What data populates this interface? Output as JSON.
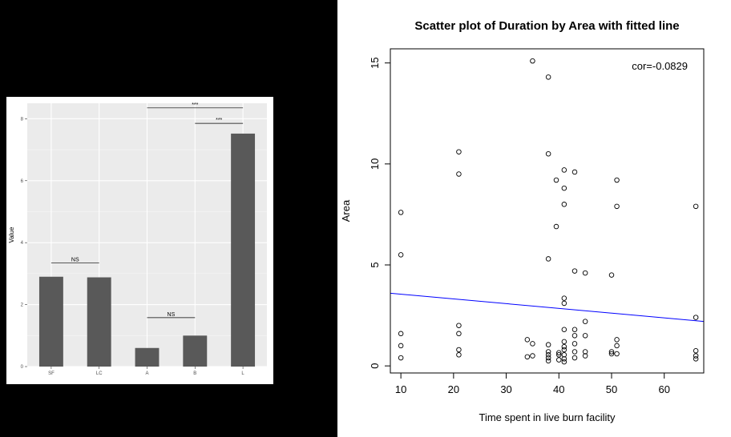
{
  "chart_data": [
    {
      "type": "bar",
      "categories": [
        "SF",
        "LC",
        "A",
        "B",
        "L"
      ],
      "values": [
        2.9,
        2.88,
        0.6,
        1.0,
        7.52
      ],
      "ylabel": "Value",
      "xlabel": "",
      "ylim": [
        0,
        8.5
      ],
      "yticks": [
        0,
        2,
        4,
        6,
        8
      ],
      "grid": true,
      "bar_color": "#595959",
      "panel_color": "#ebebeb",
      "annotations": [
        {
          "from": "SF",
          "to": "LC",
          "y": 3.35,
          "text": "NS"
        },
        {
          "from": "A",
          "to": "B",
          "y": 1.58,
          "text": "NS"
        },
        {
          "from": "A",
          "to": "L",
          "y": 8.35,
          "text": "***"
        },
        {
          "from": "B",
          "to": "L",
          "y": 7.85,
          "text": "***"
        }
      ]
    },
    {
      "type": "scatter",
      "title": "Scatter plot of Duration by Area with fitted line",
      "xlabel": "Time spent in live burn facility",
      "ylabel": "Area",
      "xlim": [
        8,
        67.5
      ],
      "ylim": [
        -0.35,
        15.7
      ],
      "xticks": [
        10,
        20,
        30,
        40,
        50,
        60
      ],
      "yticks": [
        0,
        5,
        10,
        15
      ],
      "annotation": "cor=-0.0829",
      "fit_line": {
        "color": "#0000ff",
        "x": [
          8,
          67.5
        ],
        "y": [
          3.6,
          2.2
        ]
      },
      "points": [
        [
          10,
          7.6
        ],
        [
          10,
          5.5
        ],
        [
          10,
          1.6
        ],
        [
          10,
          1.0
        ],
        [
          10,
          0.4
        ],
        [
          21,
          10.6
        ],
        [
          21,
          9.5
        ],
        [
          21,
          2.0
        ],
        [
          21,
          1.6
        ],
        [
          21,
          0.8
        ],
        [
          21,
          0.55
        ],
        [
          34,
          1.3
        ],
        [
          34,
          0.45
        ],
        [
          35,
          15.1
        ],
        [
          35,
          1.1
        ],
        [
          35,
          0.5
        ],
        [
          38,
          14.3
        ],
        [
          38,
          10.5
        ],
        [
          38,
          5.3
        ],
        [
          38,
          1.05
        ],
        [
          38,
          0.7
        ],
        [
          38,
          0.55
        ],
        [
          38,
          0.4
        ],
        [
          38,
          0.25
        ],
        [
          39.5,
          9.2
        ],
        [
          39.5,
          6.9
        ],
        [
          40,
          0.65
        ],
        [
          40,
          0.55
        ],
        [
          40,
          0.3
        ],
        [
          41,
          9.7
        ],
        [
          41,
          8.8
        ],
        [
          41,
          8.0
        ],
        [
          41,
          3.35
        ],
        [
          41,
          3.1
        ],
        [
          41,
          1.8
        ],
        [
          41,
          1.2
        ],
        [
          41,
          0.95
        ],
        [
          41,
          0.8
        ],
        [
          41,
          0.55
        ],
        [
          41,
          0.35
        ],
        [
          41,
          0.2
        ],
        [
          43,
          9.6
        ],
        [
          43,
          4.7
        ],
        [
          43,
          1.8
        ],
        [
          43,
          1.5
        ],
        [
          43,
          1.1
        ],
        [
          43,
          0.7
        ],
        [
          43,
          0.4
        ],
        [
          45,
          4.6
        ],
        [
          45,
          2.2
        ],
        [
          45,
          1.5
        ],
        [
          45,
          0.7
        ],
        [
          45,
          0.5
        ],
        [
          50,
          4.5
        ],
        [
          50,
          0.7
        ],
        [
          50,
          0.6
        ],
        [
          51,
          9.2
        ],
        [
          51,
          7.9
        ],
        [
          51,
          1.3
        ],
        [
          51,
          1.0
        ],
        [
          51,
          0.6
        ],
        [
          66,
          7.9
        ],
        [
          66,
          2.4
        ],
        [
          66,
          0.75
        ],
        [
          66,
          0.5
        ],
        [
          66,
          0.35
        ]
      ]
    }
  ]
}
